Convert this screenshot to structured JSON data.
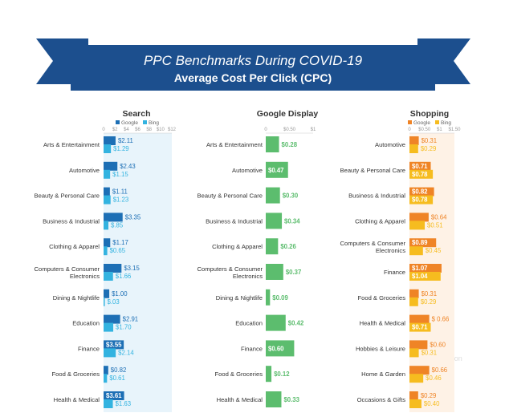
{
  "header": {
    "title": "PPC Benchmarks During COVID-19",
    "subtitle": "Average Cost Per Click (CPC)"
  },
  "watermark": "Ωmmunipoon",
  "colors": {
    "banner": "#1c4f8e",
    "banner_dark": "#0f3566",
    "search_google": "#1d6fb5",
    "search_bing": "#33b3e0",
    "search_bg": "#e8f4fb",
    "display": "#5cbd6e",
    "shopping_google": "#ef8426",
    "shopping_bing": "#f6bc1f",
    "shopping_bg": "#fef2e6"
  },
  "chart_data": [
    {
      "type": "bar",
      "title": "Search",
      "legend": [
        "Google",
        "Bing"
      ],
      "ticks": [
        "0",
        "$2",
        "$4",
        "$6",
        "$8",
        "$10",
        "$12"
      ],
      "xlim": [
        0,
        12
      ],
      "categories": [
        "Arts & Entertainment",
        "Automotive",
        "Beauty & Personal Care",
        "Business & Industrial",
        "Clothing & Apparel",
        "Computers & Consumer Electronics",
        "Dining & Nightlife",
        "Education",
        "Finance",
        "Food & Groceries",
        "Health & Medical"
      ],
      "series": [
        {
          "name": "Google",
          "values": [
            2.11,
            2.43,
            1.11,
            3.35,
            1.17,
            3.15,
            1.0,
            2.91,
            3.55,
            0.82,
            3.61
          ],
          "labels": [
            "$2.11",
            "$2.43",
            "$1.11",
            "$3.35",
            "$1.17",
            "$3.15",
            "$1.00",
            "$2.91",
            "$3.55",
            "$0.82",
            "$3.61"
          ]
        },
        {
          "name": "Bing",
          "values": [
            1.29,
            1.15,
            1.23,
            0.85,
            0.65,
            1.66,
            0.03,
            1.7,
            2.14,
            0.61,
            1.63
          ],
          "labels": [
            "$1.29",
            "$1.15",
            "$1.23",
            "$.85",
            "$0.65",
            "$1.66",
            "$.03",
            "$1.70",
            "$2.14",
            "$0.61",
            "$1.63"
          ]
        }
      ]
    },
    {
      "type": "bar",
      "title": "Google Display",
      "ticks": [
        "0",
        "$0.50",
        "$1"
      ],
      "xlim": [
        0,
        1
      ],
      "categories": [
        "Arts & Entertainment",
        "Automotive",
        "Beauty & Personal Care",
        "Business & Industrial",
        "Clothing & Apparel",
        "Computers & Consumer Electronics",
        "Dining & Nightlife",
        "Education",
        "Finance",
        "Food & Groceries",
        "Health & Medical"
      ],
      "series": [
        {
          "values": [
            0.28,
            0.47,
            0.3,
            0.34,
            0.26,
            0.37,
            0.09,
            0.42,
            0.6,
            0.12,
            0.33
          ],
          "labels": [
            "$0.28",
            "$0.47",
            "$0.30",
            "$0.34",
            "$0.26",
            "$0.37",
            "$0.09",
            "$0.42",
            "$0.60",
            "$0.12",
            "$0.33"
          ]
        }
      ]
    },
    {
      "type": "bar",
      "title": "Shopping",
      "legend": [
        "Google",
        "Bing"
      ],
      "ticks": [
        "0",
        "$0.50",
        "$1",
        "$1.50"
      ],
      "xlim": [
        0,
        1.5
      ],
      "categories": [
        "Automotive",
        "Beauty & Personal Care",
        "Business & Industrial",
        "Clothing & Apparel",
        "Computers & Consumer Electronics",
        "Finance",
        "Food & Groceries",
        "Health & Medical",
        "Hobbies & Leisure",
        "Home & Garden",
        "Occasions & Gifts"
      ],
      "series": [
        {
          "name": "Google",
          "values": [
            0.31,
            0.71,
            0.82,
            0.64,
            0.89,
            1.07,
            0.31,
            0.66,
            0.6,
            0.66,
            0.29
          ],
          "labels": [
            "$0.31",
            "$0.71",
            "$0.82",
            "$0.64",
            "$0.89",
            "$1.07",
            "$0.31",
            "$ 0.66",
            "$0.60",
            "$0.66",
            "$0.29"
          ]
        },
        {
          "name": "Bing",
          "values": [
            0.29,
            0.78,
            0.78,
            0.51,
            0.45,
            1.04,
            0.29,
            0.71,
            0.31,
            0.46,
            0.4
          ],
          "labels": [
            "$0.29",
            "$0.78",
            "$0.78",
            "$0.51",
            "$0.45",
            "$1.04",
            "$0.29",
            "$0.71",
            "$0.31",
            "$0.46",
            "$0.40"
          ]
        }
      ]
    }
  ]
}
